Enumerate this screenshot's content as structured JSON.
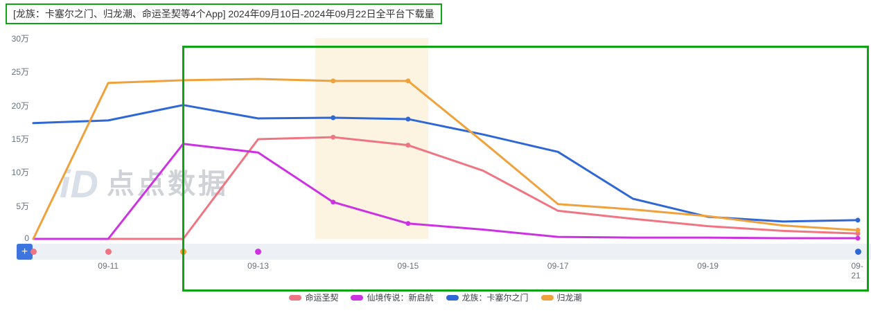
{
  "header": {
    "title": "[龙族：卡塞尔之门、归龙潮、命运圣契等4个App]  2024年09月10日-2024年09月22日全平台下载量"
  },
  "watermark": {
    "logo": "iD",
    "text": "点点数据"
  },
  "annotations": {
    "color": "#0fa414"
  },
  "colors": {
    "scrubber_bg": "#edf0f5",
    "add_button_bg": "#3d74dd",
    "axis_label": "#67707c"
  },
  "timeline": {
    "add_button_label": "+",
    "markers": [
      {
        "x": "09-10",
        "color": "#f07583"
      },
      {
        "x": "09-11",
        "color": "#f07583"
      },
      {
        "x": "09-12",
        "color": "#efa23b"
      },
      {
        "x": "09-13",
        "color": "#cd32e2"
      },
      {
        "x": "09-21",
        "color": "#2f68d5"
      }
    ]
  },
  "chart_data": {
    "type": "line",
    "title": "2024年09月10日-2024年09月22日全平台下载量",
    "unit": "万",
    "ylim": [
      0,
      30
    ],
    "x": [
      "09-10",
      "09-11",
      "09-12",
      "09-13",
      "09-14",
      "09-15",
      "09-16",
      "09-17",
      "09-18",
      "09-19",
      "09-20",
      "09-21"
    ],
    "x_tick_labels": [
      "09-11",
      "09-13",
      "09-15",
      "09-17",
      "09-19",
      "09-21"
    ],
    "y_ticks": [
      {
        "label": "30万",
        "value": 30
      },
      {
        "label": "25万",
        "value": 25
      },
      {
        "label": "20万",
        "value": 20
      },
      {
        "label": "15万",
        "value": 15
      },
      {
        "label": "10万",
        "value": 10
      },
      {
        "label": "5万",
        "value": 5
      },
      {
        "label": "0",
        "value": 0
      }
    ],
    "series": [
      {
        "name": "命运圣契",
        "color": "#f07583",
        "values": [
          0,
          0,
          0,
          14.9,
          15.2,
          14.0,
          10.2,
          4.2,
          3.0,
          1.9,
          1.2,
          0.8
        ]
      },
      {
        "name": "仙境传说：新启航",
        "color": "#cd32e2",
        "values": [
          0,
          0,
          14.2,
          12.9,
          5.5,
          2.3,
          1.4,
          0.3,
          0.2,
          0.2,
          0.1,
          0.1
        ]
      },
      {
        "name": "龙族：卡塞尔之门",
        "color": "#2f68d5",
        "values": [
          17.3,
          17.7,
          20.0,
          18.0,
          18.1,
          17.9,
          15.6,
          13.0,
          6.0,
          3.3,
          2.6,
          2.8
        ]
      },
      {
        "name": "归龙潮",
        "color": "#efa23b",
        "values": [
          0,
          23.3,
          23.7,
          23.9,
          23.6,
          23.6,
          14.5,
          5.2,
          4.4,
          3.4,
          2.0,
          1.3
        ]
      }
    ],
    "marker_indices": [
      4,
      5,
      11
    ],
    "highlight_band": {
      "start_index": 3.76,
      "end_index": 5.27,
      "color": "#fcf3e0"
    },
    "grid": false,
    "legend_position": "bottom"
  }
}
